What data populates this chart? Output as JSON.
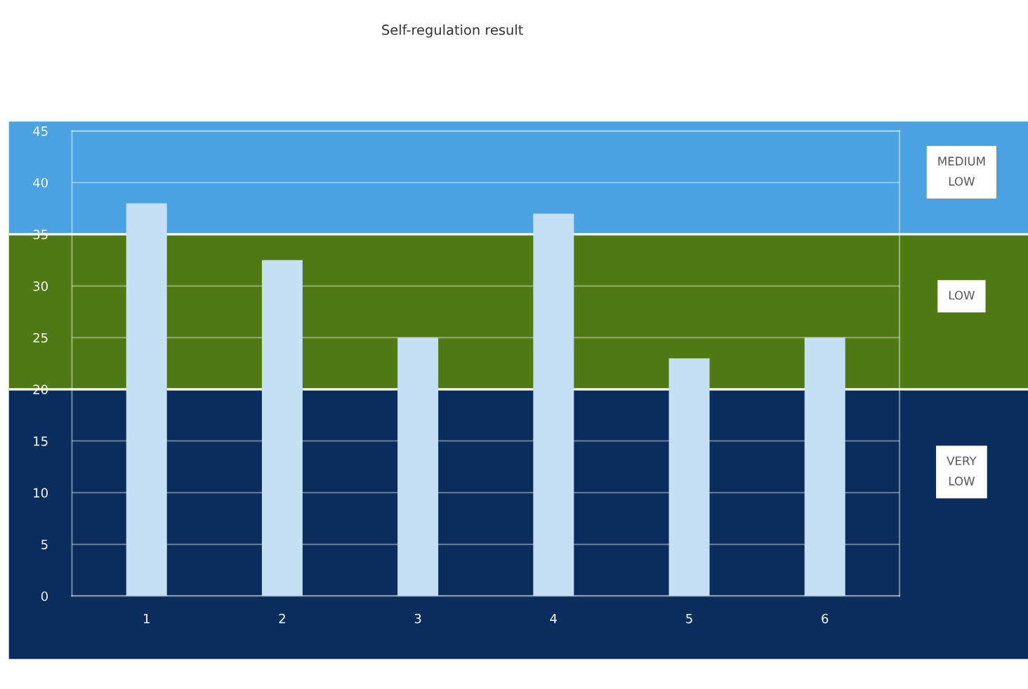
{
  "chart_data": {
    "type": "bar",
    "title": "Self-regulation result",
    "categories": [
      "1",
      "2",
      "3",
      "4",
      "5",
      "6"
    ],
    "values": [
      38,
      32.5,
      25,
      37,
      23,
      25
    ],
    "color": "#c5dff5",
    "ylim": [
      0,
      45
    ],
    "yticks": [
      0,
      5,
      10,
      15,
      20,
      25,
      30,
      35,
      40,
      45
    ],
    "grid": "y",
    "bands": [
      {
        "axis": "y",
        "from": 0,
        "to": 20,
        "label": "VERY\nLOW",
        "color": "#0a2d5e"
      },
      {
        "axis": "y",
        "from": 20,
        "to": 35,
        "label": "LOW",
        "color": "#4f7a13"
      },
      {
        "axis": "y",
        "from": 35,
        "to": 45,
        "label": "MEDIUM\nLOW",
        "color": "#4aa3e0"
      }
    ]
  }
}
